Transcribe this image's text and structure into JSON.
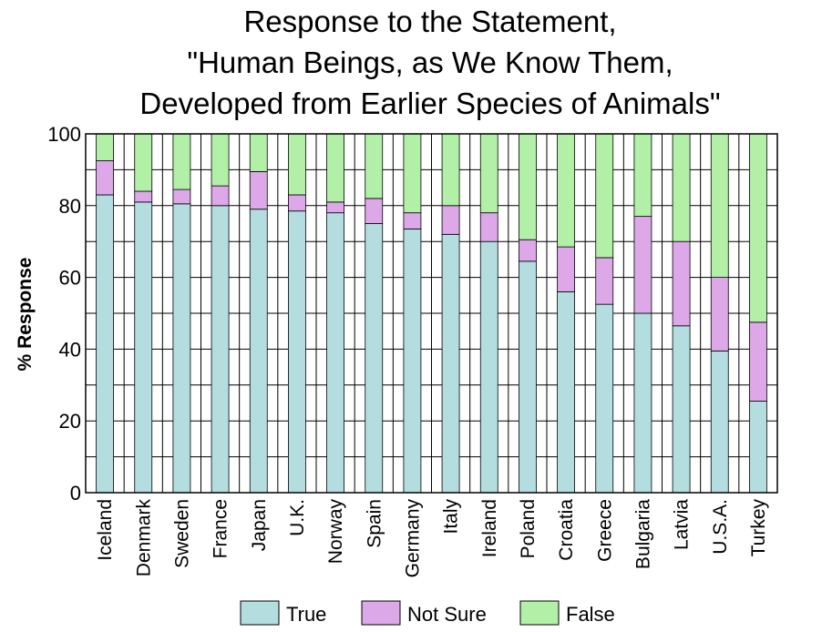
{
  "chart_data": {
    "type": "bar",
    "stacked": true,
    "title": "Response to the Statement,\n\"Human Beings, as We Know Them,\nDeveloped from Earlier Species of Animals\"",
    "ylabel": "% Response",
    "xlabel": "",
    "ylim": [
      0,
      100
    ],
    "yticks": [
      0,
      20,
      40,
      60,
      80,
      100
    ],
    "grid": true,
    "legend_position": "bottom",
    "categories": [
      "Iceland",
      "Denmark",
      "Sweden",
      "France",
      "Japan",
      "U.K.",
      "Norway",
      "Spain",
      "Germany",
      "Italy",
      "Ireland",
      "Poland",
      "Croatia",
      "Greece",
      "Bulgaria",
      "Latvia",
      "U.S.A.",
      "Turkey"
    ],
    "series": [
      {
        "name": "True",
        "color": "#b4dde0",
        "values": [
          83,
          81,
          80.5,
          80,
          79,
          78.5,
          78,
          75,
          73.5,
          72,
          70,
          64.5,
          56,
          52.5,
          50,
          46.5,
          39.5,
          25.5
        ]
      },
      {
        "name": "Not Sure",
        "color": "#dda8e8",
        "values": [
          9.5,
          3,
          4,
          5.5,
          10.5,
          4.5,
          3,
          7,
          4.5,
          8,
          8,
          6,
          12.5,
          13,
          27,
          23.5,
          20.5,
          22
        ]
      },
      {
        "name": "False",
        "color": "#b2f0a8",
        "values": [
          7.5,
          16,
          15.5,
          14.5,
          10.5,
          17,
          19,
          18,
          22,
          20,
          22,
          29.5,
          31.5,
          34.5,
          23,
          30,
          40,
          52.5
        ]
      }
    ]
  }
}
